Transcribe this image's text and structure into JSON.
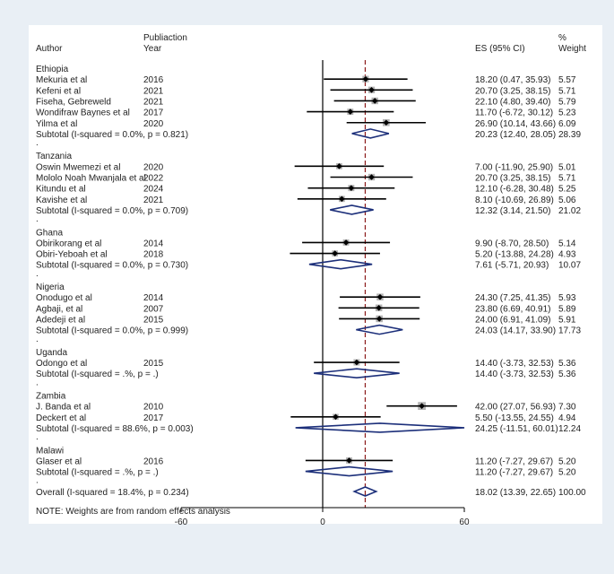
{
  "chart_data": {
    "type": "forest",
    "headers": {
      "author": "Author",
      "year_line1": "Publiaction",
      "year_line2": "Year",
      "es": "ES (95% CI)",
      "weight_line1": "%",
      "weight_line2": "Weight"
    },
    "axis": {
      "xlim": [
        -60,
        60
      ],
      "ticks": [
        -60,
        0,
        60
      ],
      "tick_labels": [
        "-60",
        "0",
        "60"
      ],
      "null_value": 0,
      "overall_es": 18.02
    },
    "colors": {
      "ci_line": "#000000",
      "weight_box": "#b3b3b3",
      "point": "#000000",
      "diamond": "#1c2f7a",
      "overall_line": "#8b1a1a"
    },
    "groups": [
      {
        "name": "Ethiopia",
        "studies": [
          {
            "author": "Mekuria et al",
            "year": "2016",
            "es": 18.2,
            "lo": 0.47,
            "hi": 35.93,
            "es_text": "18.20 (0.47, 35.93)",
            "weight": "5.57"
          },
          {
            "author": "Kefeni et al",
            "year": "2021",
            "es": 20.7,
            "lo": 3.25,
            "hi": 38.15,
            "es_text": "20.70 (3.25, 38.15)",
            "weight": "5.71"
          },
          {
            "author": "Fiseha, Gebreweld",
            "year": "2021",
            "es": 22.1,
            "lo": 4.8,
            "hi": 39.4,
            "es_text": "22.10 (4.80, 39.40)",
            "weight": "5.79"
          },
          {
            "author": "Wondifraw Baynes et al",
            "year": "2017",
            "es": 11.7,
            "lo": -6.72,
            "hi": 30.12,
            "es_text": "11.70 (-6.72, 30.12)",
            "weight": "5.23"
          },
          {
            "author": "Yilma et al",
            "year": "2020",
            "es": 26.9,
            "lo": 10.14,
            "hi": 43.66,
            "es_text": "26.90 (10.14, 43.66)",
            "weight": "6.09"
          }
        ],
        "subtotal": {
          "label": "Subtotal  (I-squared = 0.0%, p = 0.821)",
          "es": 20.23,
          "lo": 12.4,
          "hi": 28.05,
          "es_text": "20.23 (12.40, 28.05)",
          "weight": "28.39"
        }
      },
      {
        "name": "Tanzania",
        "studies": [
          {
            "author": "Oswin Mwemezi et al",
            "year": "2020",
            "es": 7.0,
            "lo": -11.9,
            "hi": 25.9,
            "es_text": "7.00 (-11.90, 25.90)",
            "weight": "5.01"
          },
          {
            "author": "Mololo Noah Mwanjala et al",
            "year": "2022",
            "es": 20.7,
            "lo": 3.25,
            "hi": 38.15,
            "es_text": "20.70 (3.25, 38.15)",
            "weight": "5.71"
          },
          {
            "author": "Kitundu et al",
            "year": "2024",
            "es": 12.1,
            "lo": -6.28,
            "hi": 30.48,
            "es_text": "12.10 (-6.28, 30.48)",
            "weight": "5.25"
          },
          {
            "author": "Kavishe et al",
            "year": "2021",
            "es": 8.1,
            "lo": -10.69,
            "hi": 26.89,
            "es_text": "8.10 (-10.69, 26.89)",
            "weight": "5.06"
          }
        ],
        "subtotal": {
          "label": "Subtotal  (I-squared = 0.0%, p = 0.709)",
          "es": 12.32,
          "lo": 3.14,
          "hi": 21.5,
          "es_text": "12.32 (3.14, 21.50)",
          "weight": "21.02"
        }
      },
      {
        "name": "Ghana",
        "studies": [
          {
            "author": "Obirikorang et al",
            "year": "2014",
            "es": 9.9,
            "lo": -8.7,
            "hi": 28.5,
            "es_text": "9.90 (-8.70, 28.50)",
            "weight": "5.14"
          },
          {
            "author": "Obiri-Yeboah et al",
            "year": "2018",
            "es": 5.2,
            "lo": -13.88,
            "hi": 24.28,
            "es_text": "5.20 (-13.88, 24.28)",
            "weight": "4.93"
          }
        ],
        "subtotal": {
          "label": "Subtotal  (I-squared = 0.0%, p = 0.730)",
          "es": 7.61,
          "lo": -5.71,
          "hi": 20.93,
          "es_text": "7.61 (-5.71, 20.93)",
          "weight": "10.07"
        }
      },
      {
        "name": "Nigeria",
        "studies": [
          {
            "author": "Onodugo et al",
            "year": "2014",
            "es": 24.3,
            "lo": 7.25,
            "hi": 41.35,
            "es_text": "24.30 (7.25, 41.35)",
            "weight": "5.93"
          },
          {
            "author": "Agbaji, et al",
            "year": "2007",
            "es": 23.8,
            "lo": 6.69,
            "hi": 40.91,
            "es_text": "23.80 (6.69, 40.91)",
            "weight": "5.89"
          },
          {
            "author": "Adedeji et al",
            "year": "2015",
            "es": 24.0,
            "lo": 6.91,
            "hi": 41.09,
            "es_text": "24.00 (6.91, 41.09)",
            "weight": "5.91"
          }
        ],
        "subtotal": {
          "label": "Subtotal  (I-squared = 0.0%, p = 0.999)",
          "es": 24.03,
          "lo": 14.17,
          "hi": 33.9,
          "es_text": "24.03 (14.17, 33.90)",
          "weight": "17.73"
        }
      },
      {
        "name": "Uganda",
        "studies": [
          {
            "author": "Odongo et al",
            "year": "2015",
            "es": 14.4,
            "lo": -3.73,
            "hi": 32.53,
            "es_text": "14.40 (-3.73, 32.53)",
            "weight": "5.36"
          }
        ],
        "subtotal": {
          "label": "Subtotal  (I-squared = .%, p = .)",
          "es": 14.4,
          "lo": -3.73,
          "hi": 32.53,
          "es_text": "14.40 (-3.73, 32.53)",
          "weight": "5.36"
        }
      },
      {
        "name": "Zambia",
        "studies": [
          {
            "author": "J. Banda et al",
            "year": "2010",
            "es": 42.0,
            "lo": 27.07,
            "hi": 56.93,
            "es_text": "42.00 (27.07, 56.93)",
            "weight": "7.30"
          },
          {
            "author": "Deckert et al",
            "year": "2017",
            "es": 5.5,
            "lo": -13.55,
            "hi": 24.55,
            "es_text": "5.50 (-13.55, 24.55)",
            "weight": "4.94"
          }
        ],
        "subtotal": {
          "label": "Subtotal  (I-squared = 88.6%, p = 0.003)",
          "es": 24.25,
          "lo": -11.51,
          "hi": 60.01,
          "es_text": "24.25 (-11.51, 60.01)",
          "weight": "12.24"
        }
      },
      {
        "name": "Malawi",
        "studies": [
          {
            "author": "Glaser et al",
            "year": "2016",
            "es": 11.2,
            "lo": -7.27,
            "hi": 29.67,
            "es_text": "11.20 (-7.27, 29.67)",
            "weight": "5.20"
          }
        ],
        "subtotal": {
          "label": "Subtotal  (I-squared = .%, p = .)",
          "es": 11.2,
          "lo": -7.27,
          "hi": 29.67,
          "es_text": "11.20 (-7.27, 29.67)",
          "weight": "5.20"
        }
      }
    ],
    "separator": ".",
    "overall": {
      "label": "Overall  (I-squared = 18.4%, p = 0.234)",
      "es": 18.02,
      "lo": 13.39,
      "hi": 22.65,
      "es_text": "18.02 (13.39, 22.65)",
      "weight": "100.00"
    },
    "note": "NOTE: Weights are from random effects analysis"
  }
}
